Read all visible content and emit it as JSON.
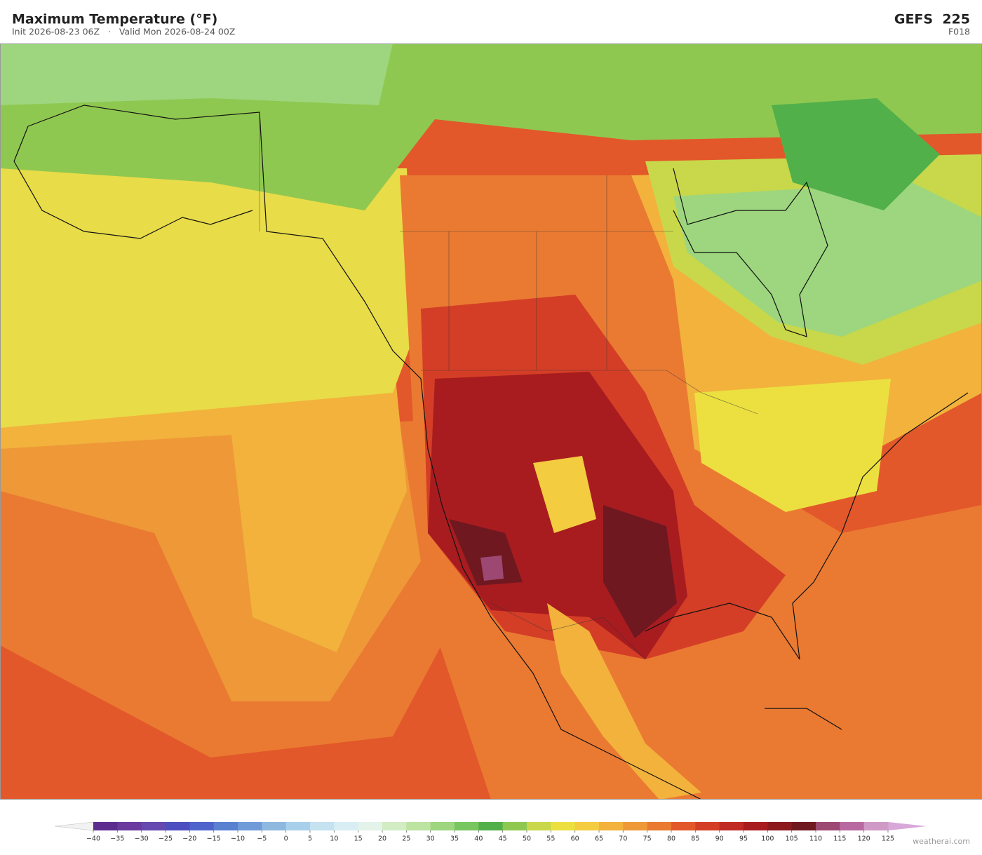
{
  "header": {
    "title": "Maximum Temperature  (°F)",
    "subtitle": "Init 2026-08-23 06Z   ·   Valid Mon 2026-08-24 00Z",
    "model": "GEFS  225",
    "forecast_hour": "F018"
  },
  "colorbar": {
    "ticks": [
      {
        "value": -40,
        "label": "−40"
      },
      {
        "value": -35,
        "label": "−35"
      },
      {
        "value": -30,
        "label": "−30"
      },
      {
        "value": -25,
        "label": "−25"
      },
      {
        "value": -20,
        "label": "−20"
      },
      {
        "value": -15,
        "label": "−15"
      },
      {
        "value": -10,
        "label": "−10"
      },
      {
        "value": -5,
        "label": "−5"
      },
      0,
      5,
      10,
      15,
      20,
      25,
      30,
      35,
      40,
      45,
      50,
      55,
      60,
      65,
      70,
      75,
      80,
      85,
      90,
      95,
      100,
      105,
      110,
      115,
      120,
      125
    ],
    "colors": [
      "#5c2d8f",
      "#6a3a9e",
      "#6548b0",
      "#4d4fc0",
      "#4e63cc",
      "#5a80d0",
      "#6f9bd8",
      "#8fb8e0",
      "#a8d0ea",
      "#c4e2f0",
      "#d8eef4",
      "#e4f3ea",
      "#d2ecc4",
      "#bce3a0",
      "#9dd67e",
      "#78c660",
      "#52b04a",
      "#8fc850",
      "#c8d84a",
      "#ece040",
      "#f4cc40",
      "#f2b23c",
      "#ee9838",
      "#ea7a32",
      "#e2582a",
      "#d43e26",
      "#c02a22",
      "#a81c20",
      "#8c1a1c",
      "#701820",
      "#9c4872",
      "#b86aa0",
      "#d09ac6"
    ],
    "under_color": "#f2f2f2",
    "over_color": "#d8a8d8"
  },
  "footer": {
    "credit": "weatherai.com"
  }
}
